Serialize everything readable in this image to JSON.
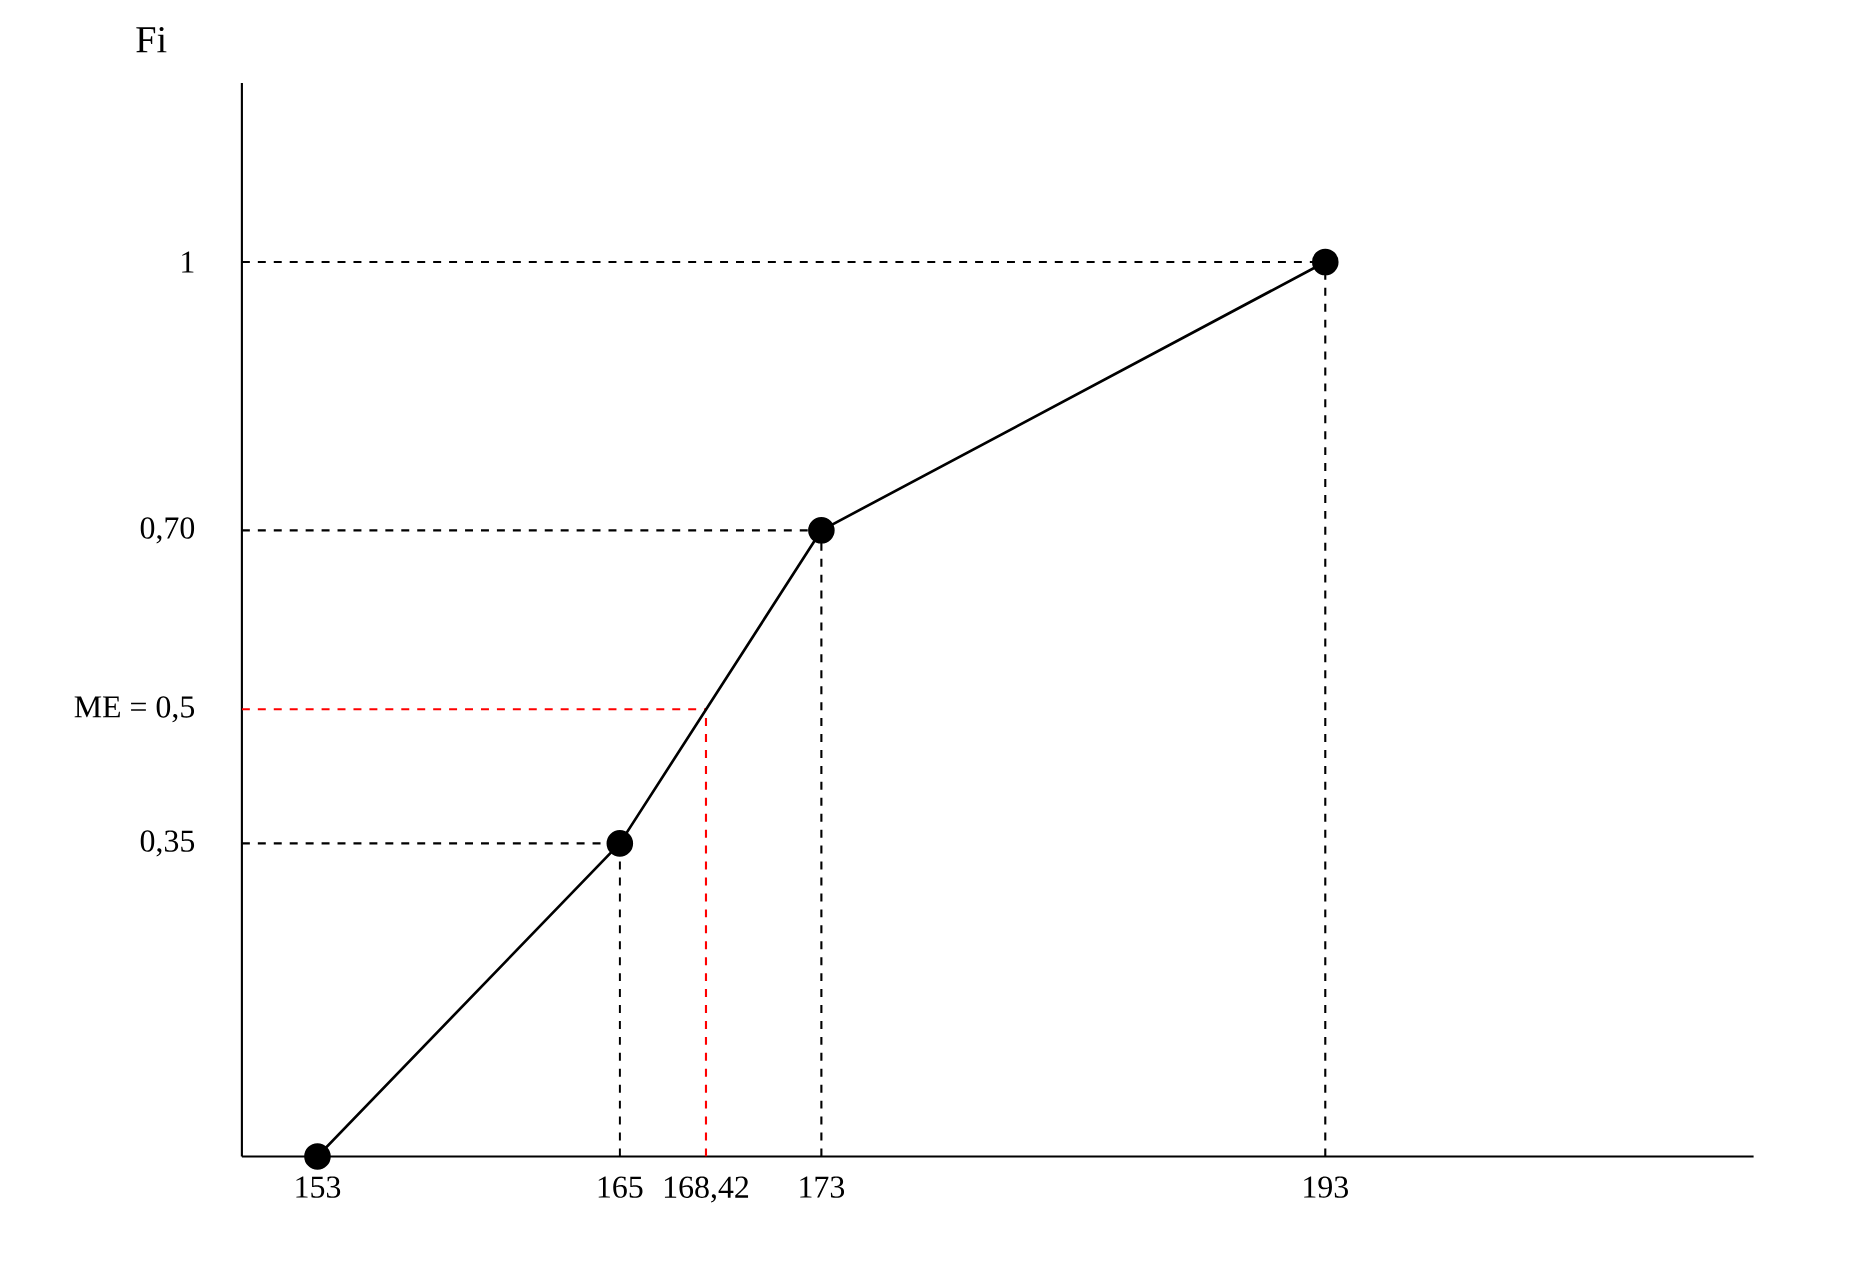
{
  "chart_data": {
    "type": "line",
    "ylabel": "Fi",
    "x": [
      153,
      165,
      173,
      193
    ],
    "series": [
      {
        "color": "#000000",
        "values": [
          0,
          0.35,
          0.7,
          1
        ]
      }
    ],
    "marker": "circle",
    "line_style": "solid",
    "grid": false,
    "xlim": [
      150,
      210
    ],
    "ylim": [
      0,
      1.2
    ],
    "xticks": [
      153,
      165,
      {
        "value": 168.42,
        "label": "168,42"
      },
      173,
      193
    ],
    "yticks": [
      {
        "value": 0.35,
        "label": "0,35"
      },
      {
        "value": 0.5,
        "label": "ME = 0,5"
      },
      {
        "value": 0.7,
        "label": "0,70"
      },
      1
    ],
    "ref_lines": [
      {
        "axis": "x",
        "value": 165,
        "color": "#000000",
        "line_style": "dashed"
      },
      {
        "axis": "x",
        "value": 173,
        "color": "#000000",
        "line_style": "dashed"
      },
      {
        "axis": "x",
        "value": 193,
        "color": "#000000",
        "line_style": "dashed"
      },
      {
        "axis": "y",
        "value": 0.35,
        "color": "#000000",
        "line_style": "dashed"
      },
      {
        "axis": "y",
        "value": 0.7,
        "color": "#000000",
        "line_style": "dashed"
      },
      {
        "axis": "y",
        "value": 1,
        "color": "#000000",
        "line_style": "dashed"
      },
      {
        "axis": "x",
        "value": 168.42,
        "color": "#ff0000",
        "line_style": "dashed"
      },
      {
        "axis": "y",
        "value": 0.5,
        "color": "#ff0000",
        "line_style": "dashed"
      }
    ]
  }
}
